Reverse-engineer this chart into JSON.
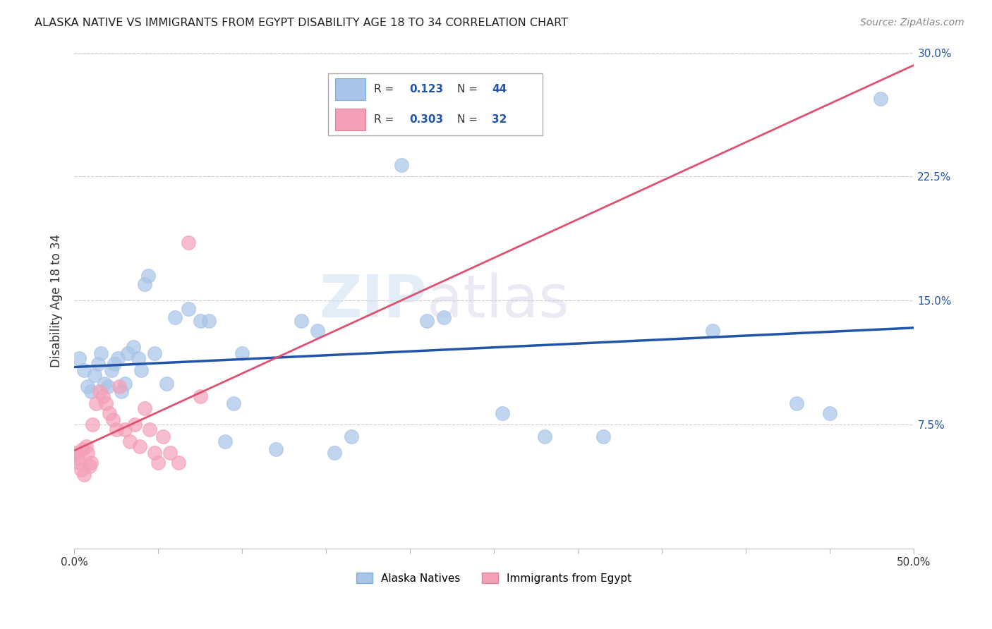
{
  "title": "ALASKA NATIVE VS IMMIGRANTS FROM EGYPT DISABILITY AGE 18 TO 34 CORRELATION CHART",
  "source": "Source: ZipAtlas.com",
  "ylabel": "Disability Age 18 to 34",
  "xlim": [
    0.0,
    0.5
  ],
  "ylim": [
    0.0,
    0.3
  ],
  "xticks": [
    0.0,
    0.05,
    0.1,
    0.15,
    0.2,
    0.25,
    0.3,
    0.35,
    0.4,
    0.45,
    0.5
  ],
  "yticks": [
    0.0,
    0.075,
    0.15,
    0.225,
    0.3
  ],
  "ytick_labels": [
    "",
    "7.5%",
    "15.0%",
    "22.5%",
    "30.0%"
  ],
  "xtick_labels": [
    "0.0%",
    "",
    "",
    "",
    "",
    "",
    "",
    "",
    "",
    "",
    "50.0%"
  ],
  "blue_color": "#a8c4e8",
  "pink_color": "#f4a0b8",
  "blue_line_color": "#2255aa",
  "pink_line_color": "#e05070",
  "watermark_top": "ZIP",
  "watermark_bot": "atlas",
  "alaska_x": [
    0.003,
    0.006,
    0.008,
    0.01,
    0.012,
    0.014,
    0.016,
    0.018,
    0.02,
    0.022,
    0.024,
    0.026,
    0.028,
    0.03,
    0.032,
    0.035,
    0.038,
    0.04,
    0.042,
    0.044,
    0.048,
    0.055,
    0.06,
    0.068,
    0.075,
    0.08,
    0.09,
    0.095,
    0.1,
    0.12,
    0.135,
    0.145,
    0.155,
    0.165,
    0.195,
    0.21,
    0.22,
    0.255,
    0.28,
    0.315,
    0.38,
    0.43,
    0.45,
    0.48
  ],
  "alaska_y": [
    0.115,
    0.108,
    0.098,
    0.095,
    0.105,
    0.112,
    0.118,
    0.1,
    0.098,
    0.108,
    0.112,
    0.115,
    0.095,
    0.1,
    0.118,
    0.122,
    0.115,
    0.108,
    0.16,
    0.165,
    0.118,
    0.1,
    0.14,
    0.145,
    0.138,
    0.138,
    0.065,
    0.088,
    0.118,
    0.06,
    0.138,
    0.132,
    0.058,
    0.068,
    0.232,
    0.138,
    0.14,
    0.082,
    0.068,
    0.068,
    0.132,
    0.088,
    0.082,
    0.272
  ],
  "egypt_x": [
    0.001,
    0.002,
    0.003,
    0.004,
    0.005,
    0.006,
    0.007,
    0.008,
    0.009,
    0.01,
    0.011,
    0.013,
    0.015,
    0.017,
    0.019,
    0.021,
    0.023,
    0.025,
    0.027,
    0.03,
    0.033,
    0.036,
    0.039,
    0.042,
    0.045,
    0.048,
    0.05,
    0.053,
    0.057,
    0.062,
    0.068,
    0.075
  ],
  "egypt_y": [
    0.058,
    0.055,
    0.052,
    0.048,
    0.06,
    0.045,
    0.062,
    0.058,
    0.05,
    0.052,
    0.075,
    0.088,
    0.095,
    0.092,
    0.088,
    0.082,
    0.078,
    0.072,
    0.098,
    0.072,
    0.065,
    0.075,
    0.062,
    0.085,
    0.072,
    0.058,
    0.052,
    0.068,
    0.058,
    0.052,
    0.185,
    0.092
  ]
}
